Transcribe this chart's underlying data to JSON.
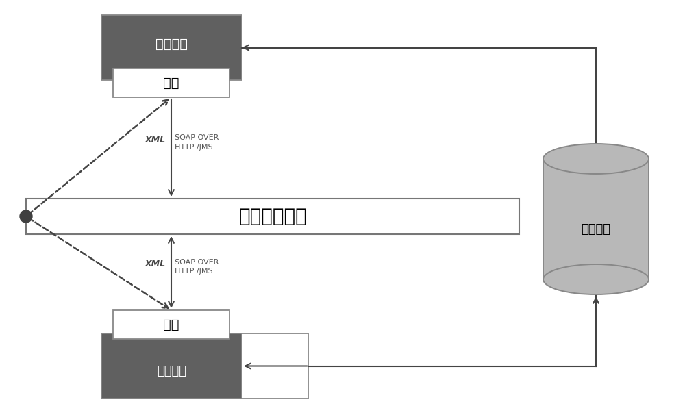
{
  "bg_color": "#ffffff",
  "dark_gray": "#606060",
  "light_gray": "#b8b8b8",
  "outline": "#888888",
  "top_box_label": "方式管理",
  "top_service_label": "服务",
  "bus_label": "企业服务总线",
  "bottom_box_label": "各层系统",
  "bottom_service_label": "服务",
  "dc_label": "数据中心",
  "top_xml_label": "XML",
  "top_soap_label": "SOAP OVER\nHTTP /JMS",
  "bot_xml_label": "XML",
  "bot_soap_label": "SOAP OVER\nHTTP /JMS",
  "figw": 10.0,
  "figh": 6.09,
  "dpi": 100
}
